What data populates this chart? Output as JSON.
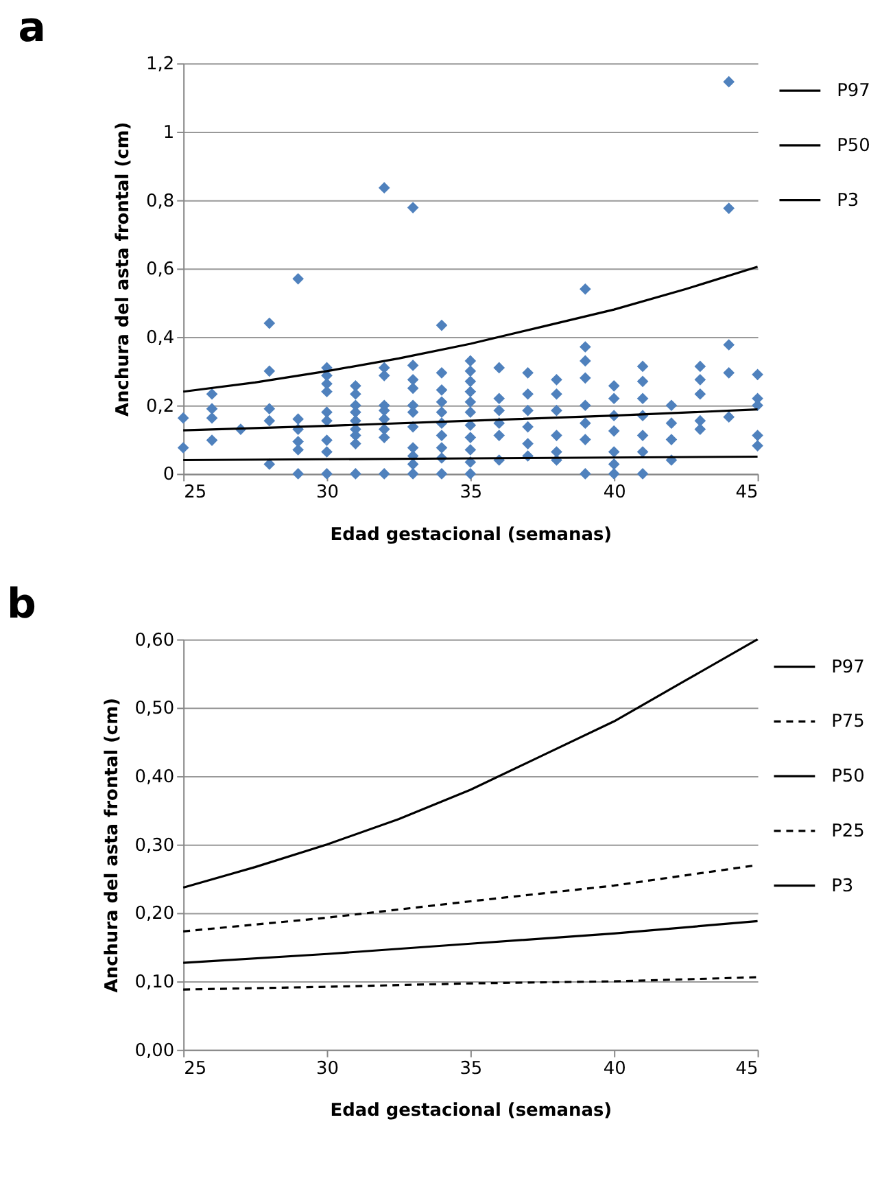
{
  "chart_data": [
    {
      "type": "scatter",
      "title": "a",
      "xlabel": "Edad gestacional (semanas)",
      "ylabel": "Anchura del asta frontal (cm)",
      "xlim": [
        25,
        45
      ],
      "xticks": [
        25,
        30,
        35,
        40,
        45
      ],
      "ylim": [
        0,
        1.2
      ],
      "yticks": [
        0,
        {
          "value": 0.2,
          "label": "0,2"
        },
        {
          "value": 0.4,
          "label": "0,4"
        },
        {
          "value": 0.6,
          "label": "0,6"
        },
        {
          "value": 0.8,
          "label": "0,8"
        },
        1,
        {
          "value": 1.2,
          "label": "1,2"
        }
      ],
      "grid": "y",
      "legend": "right",
      "series": [
        {
          "color": "#4f81bd",
          "marker": "diamond",
          "x": [
            25,
            25,
            26,
            26,
            26,
            26,
            27,
            28,
            28,
            28,
            28,
            28,
            29,
            29,
            29,
            29,
            29,
            29,
            30,
            30,
            30,
            30,
            30,
            30,
            30,
            30,
            30,
            31,
            31,
            31,
            31,
            31,
            31,
            31,
            31,
            31,
            32,
            32,
            32,
            32,
            32,
            32,
            32,
            32,
            32,
            33,
            33,
            33,
            33,
            33,
            33,
            33,
            33,
            33,
            33,
            33,
            34,
            34,
            34,
            34,
            34,
            34,
            34,
            34,
            34,
            34,
            35,
            35,
            35,
            35,
            35,
            35,
            35,
            35,
            35,
            35,
            35,
            36,
            36,
            36,
            36,
            36,
            36,
            37,
            37,
            37,
            37,
            37,
            37,
            38,
            38,
            38,
            38,
            38,
            38,
            39,
            39,
            39,
            39,
            39,
            39,
            39,
            39,
            40,
            40,
            40,
            40,
            40,
            40,
            40,
            41,
            41,
            41,
            41,
            41,
            41,
            41,
            42,
            42,
            42,
            42,
            43,
            43,
            43,
            43,
            43,
            44,
            44,
            44,
            44,
            44,
            45,
            45,
            45,
            45,
            45
          ],
          "values": [
            0.163,
            0.076,
            0.233,
            0.19,
            0.163,
            0.098,
            0.13,
            0.44,
            0.3,
            0.19,
            0.155,
            0.028,
            0.57,
            0.16,
            0.13,
            0.094,
            0.07,
            0,
            0.31,
            0.287,
            0.263,
            0.24,
            0.18,
            0.155,
            0.098,
            0.064,
            0,
            0.257,
            0.233,
            0.2,
            0.18,
            0.155,
            0.13,
            0.112,
            0.088,
            0,
            0.836,
            0.31,
            0.287,
            0.2,
            0.185,
            0.16,
            0.13,
            0.106,
            0,
            0.778,
            0.317,
            0.275,
            0.25,
            0.2,
            0.18,
            0.137,
            0.076,
            0.052,
            0.028,
            0,
            0.434,
            0.295,
            0.245,
            0.21,
            0.18,
            0.148,
            0.112,
            0.076,
            0.046,
            0,
            0.33,
            0.3,
            0.27,
            0.24,
            0.21,
            0.18,
            0.142,
            0.106,
            0.07,
            0.034,
            0,
            0.31,
            0.22,
            0.185,
            0.148,
            0.112,
            0.04,
            0.295,
            0.233,
            0.185,
            0.137,
            0.088,
            0.052,
            0.275,
            0.233,
            0.185,
            0.112,
            0.064,
            0.04,
            0.54,
            0.371,
            0.33,
            0.28,
            0.2,
            0.148,
            0.1,
            0,
            0.257,
            0.22,
            0.17,
            0.125,
            0.064,
            0.028,
            0,
            0.314,
            0.27,
            0.22,
            0.17,
            0.112,
            0.064,
            0,
            0.2,
            0.148,
            0.1,
            0.04,
            0.314,
            0.275,
            0.233,
            0.155,
            0.13,
            1.146,
            0.776,
            0.377,
            0.295,
            0.166,
            0.29,
            0.22,
            0.2,
            0.112,
            0.082
          ]
        },
        {
          "type": "line",
          "name": "P97",
          "color": "#000000",
          "line_style": "solid",
          "x": [
            25,
            27.5,
            30,
            32.5,
            35,
            37.5,
            40,
            42.5,
            45
          ],
          "values": [
            0.24,
            0.267,
            0.3,
            0.337,
            0.38,
            0.43,
            0.48,
            0.54,
            0.605
          ]
        },
        {
          "type": "line",
          "name": "P50",
          "color": "#000000",
          "line_style": "solid",
          "x": [
            25,
            30,
            35,
            40,
            45
          ],
          "values": [
            0.127,
            0.14,
            0.155,
            0.17,
            0.188
          ]
        },
        {
          "type": "line",
          "name": "P3",
          "color": "#000000",
          "line_style": "solid",
          "x": [
            25,
            35,
            45
          ],
          "values": [
            0.04,
            0.045,
            0.05
          ]
        }
      ]
    },
    {
      "type": "line",
      "title": "b",
      "xlabel": "Edad gestacional (semanas)",
      "ylabel": "Anchura del asta frontal (cm)",
      "xlim": [
        25,
        45
      ],
      "xticks": [
        25,
        30,
        35,
        40,
        45
      ],
      "ylim": [
        0,
        0.6
      ],
      "yticks": [
        {
          "value": 0,
          "label": "0,00"
        },
        {
          "value": 0.1,
          "label": "0,10"
        },
        {
          "value": 0.2,
          "label": "0,20"
        },
        {
          "value": 0.3,
          "label": "0,30"
        },
        {
          "value": 0.4,
          "label": "0,40"
        },
        {
          "value": 0.5,
          "label": "0,50"
        },
        {
          "value": 0.6,
          "label": "0,60"
        }
      ],
      "grid": "y",
      "legend": "right",
      "series": [
        {
          "name": "P97",
          "color": "#000000",
          "line_style": "solid",
          "x": [
            25,
            27.5,
            30,
            32.5,
            35,
            37.5,
            40,
            42.5,
            45
          ],
          "values": [
            0.237,
            0.267,
            0.3,
            0.337,
            0.38,
            0.43,
            0.48,
            0.54,
            0.6
          ]
        },
        {
          "name": "P75",
          "color": "#000000",
          "line_style": "dashed",
          "x": [
            25,
            30,
            35,
            40,
            45
          ],
          "values": [
            0.173,
            0.193,
            0.217,
            0.24,
            0.27
          ]
        },
        {
          "name": "P50",
          "color": "#000000",
          "line_style": "solid",
          "x": [
            25,
            30,
            35,
            40,
            45
          ],
          "values": [
            0.127,
            0.14,
            0.155,
            0.17,
            0.188
          ]
        },
        {
          "name": "P25",
          "color": "#000000",
          "line_style": "dashed",
          "x": [
            25,
            30,
            35,
            40,
            45
          ],
          "values": [
            0.088,
            0.092,
            0.097,
            0.1,
            0.106
          ]
        },
        {
          "name": "P3",
          "color": "#000000",
          "line_style": "solid"
        }
      ]
    }
  ]
}
